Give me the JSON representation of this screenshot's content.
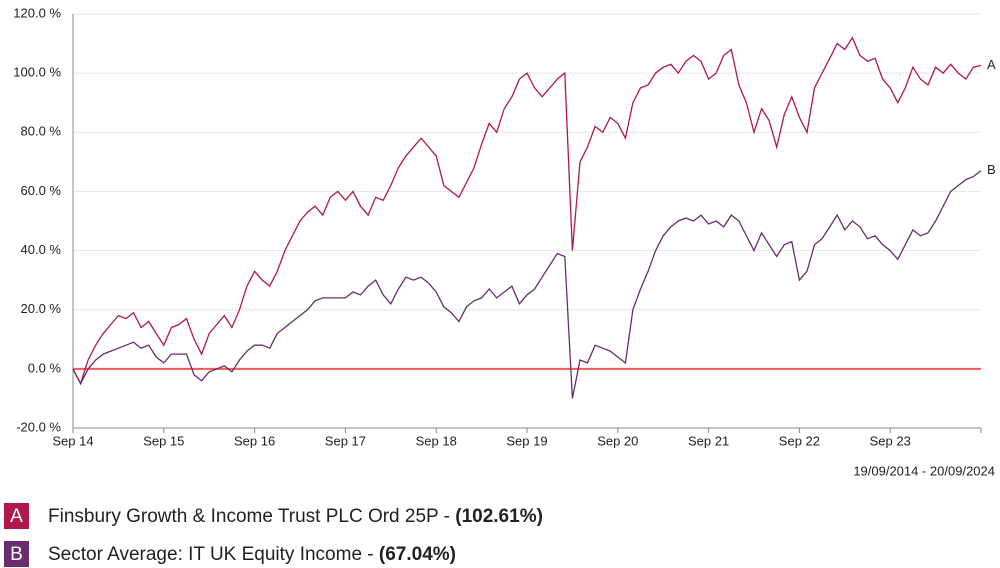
{
  "chart_data": {
    "type": "line",
    "x": [
      "Sep 14",
      "Oct 14",
      "Nov 14",
      "Dec 14",
      "Jan 15",
      "Feb 15",
      "Mar 15",
      "Apr 15",
      "May 15",
      "Jun 15",
      "Jul 15",
      "Aug 15",
      "Sep 15",
      "Oct 15",
      "Nov 15",
      "Dec 15",
      "Jan 16",
      "Feb 16",
      "Mar 16",
      "Apr 16",
      "May 16",
      "Jun 16",
      "Jul 16",
      "Aug 16",
      "Sep 16",
      "Oct 16",
      "Nov 16",
      "Dec 16",
      "Jan 17",
      "Feb 17",
      "Mar 17",
      "Apr 17",
      "May 17",
      "Jun 17",
      "Jul 17",
      "Aug 17",
      "Sep 17",
      "Oct 17",
      "Nov 17",
      "Dec 17",
      "Jan 18",
      "Feb 18",
      "Mar 18",
      "Apr 18",
      "May 18",
      "Jun 18",
      "Jul 18",
      "Aug 18",
      "Sep 18",
      "Oct 18",
      "Nov 18",
      "Dec 18",
      "Jan 19",
      "Feb 19",
      "Mar 19",
      "Apr 19",
      "May 19",
      "Jun 19",
      "Jul 19",
      "Aug 19",
      "Sep 19",
      "Oct 19",
      "Nov 19",
      "Dec 19",
      "Jan 20",
      "Feb 20",
      "Mar 20",
      "Apr 20",
      "May 20",
      "Jun 20",
      "Jul 20",
      "Aug 20",
      "Sep 20",
      "Oct 20",
      "Nov 20",
      "Dec 20",
      "Jan 21",
      "Feb 21",
      "Mar 21",
      "Apr 21",
      "May 21",
      "Jun 21",
      "Jul 21",
      "Aug 21",
      "Sep 21",
      "Oct 21",
      "Nov 21",
      "Dec 21",
      "Jan 22",
      "Feb 22",
      "Mar 22",
      "Apr 22",
      "May 22",
      "Jun 22",
      "Jul 22",
      "Aug 22",
      "Sep 22",
      "Oct 22",
      "Nov 22",
      "Dec 22",
      "Jan 23",
      "Feb 23",
      "Mar 23",
      "Apr 23",
      "May 23",
      "Jun 23",
      "Jul 23",
      "Aug 23",
      "Sep 23",
      "Oct 23",
      "Nov 23",
      "Dec 23",
      "Jan 24",
      "Feb 24",
      "Mar 24",
      "Apr 24",
      "May 24",
      "Jun 24",
      "Jul 24",
      "Aug 24",
      "Sep 24"
    ],
    "xlim": [
      "Sep 14",
      "Sep 24"
    ],
    "xticks": [
      "Sep 14",
      "Sep 15",
      "Sep 16",
      "Sep 17",
      "Sep 18",
      "Sep 19",
      "Sep 20",
      "Sep 21",
      "Sep 22",
      "Sep 23"
    ],
    "ylim": [
      -20,
      120
    ],
    "yticks": [
      {
        "value": -20,
        "label": "-20.0 %"
      },
      {
        "value": 0,
        "label": "0.0 %"
      },
      {
        "value": 20,
        "label": "20.0 %"
      },
      {
        "value": 40,
        "label": "40.0 %"
      },
      {
        "value": 60,
        "label": "60.0 %"
      },
      {
        "value": 80,
        "label": "80.0 %"
      },
      {
        "value": 100,
        "label": "100.0 %"
      },
      {
        "value": 120,
        "label": "120.0 %"
      }
    ],
    "grid": true,
    "zero_line_color": "#f05a5a",
    "date_range": "19/09/2014 - 20/09/2024",
    "series": [
      {
        "label": "A",
        "name": "Finsbury Growth & Income Trust PLC Ord 25P - ",
        "return_label": "(102.61%)",
        "color": "#b0174c",
        "values": [
          0,
          -5,
          3,
          8,
          12,
          15,
          18,
          17,
          19,
          14,
          16,
          12,
          8,
          14,
          15,
          17,
          10,
          5,
          12,
          15,
          18,
          14,
          20,
          28,
          33,
          30,
          28,
          33,
          40,
          45,
          50,
          53,
          55,
          52,
          58,
          60,
          57,
          60,
          55,
          52,
          58,
          57,
          62,
          68,
          72,
          75,
          78,
          75,
          72,
          62,
          60,
          58,
          63,
          68,
          76,
          83,
          80,
          88,
          92,
          98,
          100,
          95,
          92,
          95,
          98,
          100,
          40,
          70,
          75,
          82,
          80,
          85,
          83,
          78,
          90,
          95,
          96,
          100,
          102,
          103,
          100,
          104,
          106,
          104,
          98,
          100,
          106,
          108,
          96,
          90,
          80,
          88,
          84,
          75,
          86,
          92,
          85,
          80,
          95,
          100,
          105,
          110,
          108,
          112,
          106,
          104,
          105,
          98,
          95,
          90,
          95,
          102,
          98,
          96,
          102,
          100,
          103,
          100,
          98,
          102,
          102.61
        ]
      },
      {
        "label": "B",
        "name": "Sector Average: IT UK Equity Income - ",
        "return_label": "(67.04%)",
        "color": "#6a2c6e",
        "values": [
          0,
          -5,
          0,
          3,
          5,
          6,
          7,
          8,
          9,
          7,
          8,
          4,
          2,
          5,
          5,
          5,
          -2,
          -4,
          -1,
          0,
          1,
          -1,
          3,
          6,
          8,
          8,
          7,
          12,
          14,
          16,
          18,
          20,
          23,
          24,
          24,
          24,
          24,
          26,
          25,
          28,
          30,
          25,
          22,
          27,
          31,
          30,
          31,
          29,
          26,
          21,
          19,
          16,
          21,
          23,
          24,
          27,
          24,
          26,
          28,
          22,
          25,
          27,
          31,
          35,
          39,
          38,
          -10,
          3,
          2,
          8,
          7,
          6,
          4,
          2,
          20,
          27,
          33,
          40,
          45,
          48,
          50,
          51,
          50,
          52,
          49,
          50,
          48,
          52,
          50,
          45,
          40,
          46,
          42,
          38,
          42,
          43,
          30,
          33,
          42,
          44,
          48,
          52,
          47,
          50,
          48,
          44,
          45,
          42,
          40,
          37,
          42,
          47,
          45,
          46,
          50,
          55,
          60,
          62,
          64,
          65,
          67.04
        ]
      }
    ]
  }
}
